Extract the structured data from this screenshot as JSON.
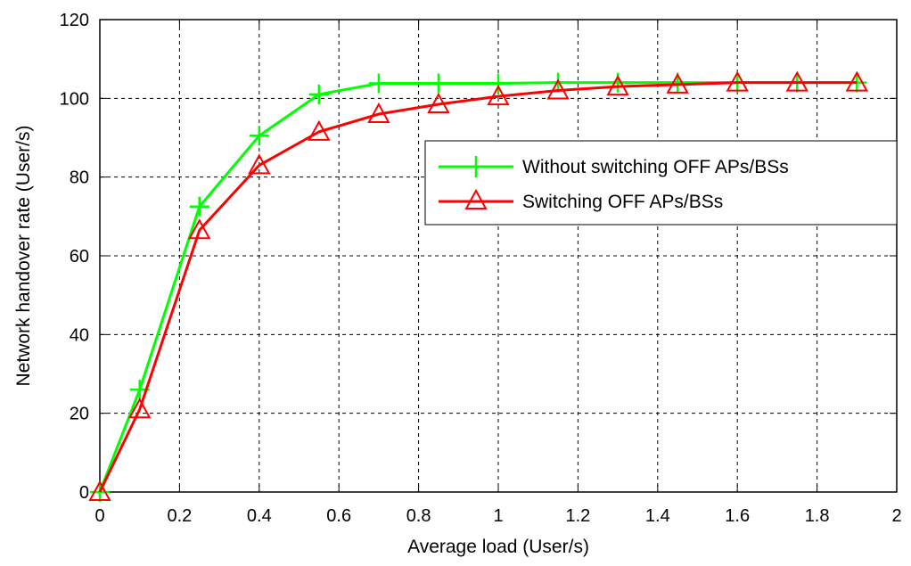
{
  "chart_data": {
    "type": "line",
    "title": "",
    "xlabel": "Average load (User/s)",
    "ylabel": "Network handover rate (User/s)",
    "xlim": [
      0,
      2
    ],
    "ylim": [
      0,
      120
    ],
    "xticks": [
      0,
      0.2,
      0.4,
      0.6,
      0.8,
      1,
      1.2,
      1.4,
      1.6,
      1.8,
      2
    ],
    "yticks": [
      0,
      20,
      40,
      60,
      80,
      100,
      120
    ],
    "xtick_labels": [
      "0",
      "0.2",
      "0.4",
      "0.6",
      "0.8",
      "1",
      "1.2",
      "1.4",
      "1.6",
      "1.8",
      "2"
    ],
    "ytick_labels": [
      "0",
      "20",
      "40",
      "60",
      "80",
      "100",
      "120"
    ],
    "grid": true,
    "legend_position": "right",
    "series": [
      {
        "name": "Without switching OFF APs/BSs",
        "color": "#00ff00",
        "marker": "plus",
        "x": [
          0,
          0.1,
          0.25,
          0.4,
          0.55,
          0.7,
          0.85,
          1.0,
          1.15,
          1.3,
          1.45,
          1.6,
          1.75,
          1.9
        ],
        "y": [
          0,
          26,
          72.5,
          90.5,
          101,
          103.8,
          103.8,
          103.8,
          104,
          104,
          104,
          104,
          104,
          104
        ]
      },
      {
        "name": "Switching OFF APs/BSs",
        "color": "#ff0000",
        "marker": "triangle",
        "x": [
          0,
          0.1,
          0.25,
          0.4,
          0.55,
          0.7,
          0.85,
          1.0,
          1.15,
          1.3,
          1.45,
          1.6,
          1.75,
          1.9
        ],
        "y": [
          0,
          21,
          66.5,
          83,
          91.5,
          96,
          98.5,
          100.5,
          102,
          103,
          103.5,
          104,
          104,
          104
        ]
      }
    ]
  }
}
